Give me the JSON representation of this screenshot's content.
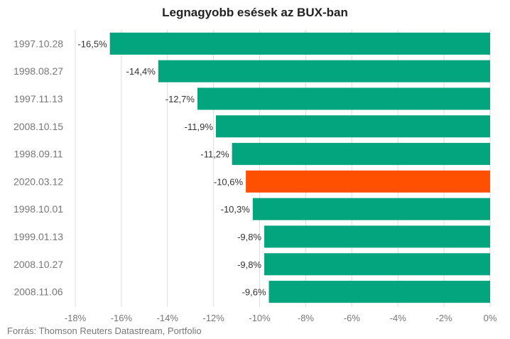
{
  "chart_data": {
    "type": "bar",
    "orientation": "horizontal",
    "title": "Legnagyobb esések az BUX-ban",
    "categories": [
      "1997.10.28",
      "1998.08.27",
      "1997.11.13",
      "2008.10.15",
      "1998.09.11",
      "2020.03.12",
      "1998.10.01",
      "1999.01.13",
      "2008.10.27",
      "2008.11.06"
    ],
    "values": [
      -16.5,
      -14.4,
      -12.7,
      -11.9,
      -11.2,
      -10.6,
      -10.3,
      -9.8,
      -9.8,
      -9.6
    ],
    "value_labels": [
      "-16,5%",
      "-14,4%",
      "-12,7%",
      "-11,9%",
      "-11,2%",
      "-10,6%",
      "-10,3%",
      "-9,8%",
      "-9,8%",
      "-9,6%"
    ],
    "highlight_index": 5,
    "xlim": [
      -18,
      0
    ],
    "x_ticks": [
      -18,
      -16,
      -14,
      -12,
      -10,
      -8,
      -6,
      -4,
      -2,
      0
    ],
    "x_tick_labels": [
      "-18%",
      "-16%",
      "-14%",
      "-12%",
      "-10%",
      "-8%",
      "-6%",
      "-4%",
      "-2%",
      "0%"
    ],
    "grid": true,
    "colors": {
      "bar": "#03a57e",
      "highlight": "#fe5000",
      "grid": "#dddddd",
      "text": "#333333",
      "tick_text": "#777777"
    }
  },
  "source": "Forrás: Thomson Reuters Datastream, Portfolio"
}
